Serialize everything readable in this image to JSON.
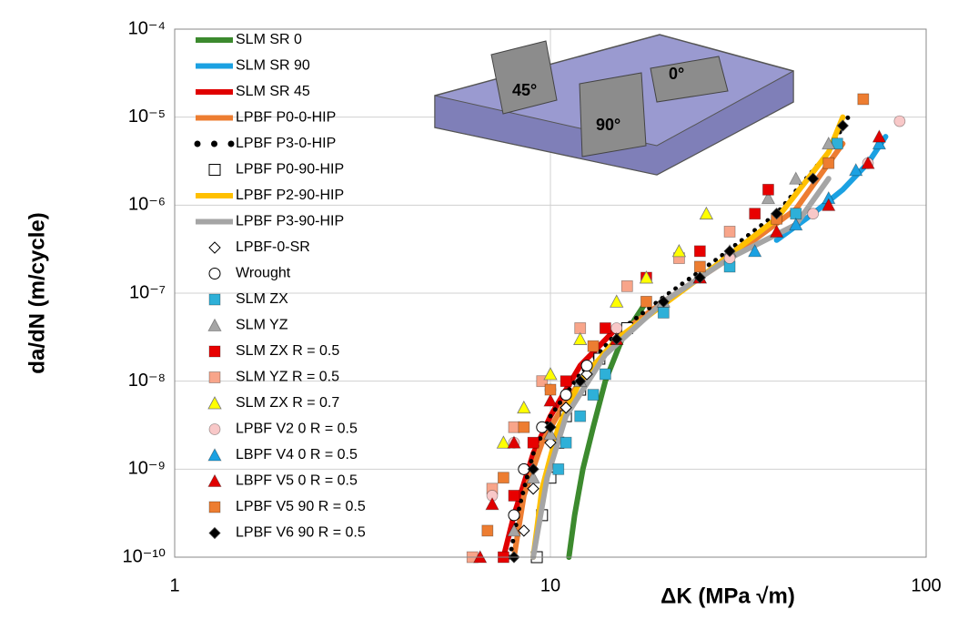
{
  "chart_data": {
    "type": "scatter",
    "x_label": "ΔK (MPa √m)",
    "y_label": "da/dN (m/cycle)",
    "xscale": "log",
    "yscale": "log",
    "xlim": [
      1,
      100
    ],
    "ylim": [
      1e-10,
      0.0001
    ],
    "xticks": [
      1,
      10,
      100
    ],
    "yticks": [
      {
        "value": 1e-10,
        "label": "10⁻¹⁰"
      },
      {
        "value": 1e-09,
        "label": "10⁻⁹"
      },
      {
        "value": 1e-08,
        "label": "10⁻⁸"
      },
      {
        "value": 1e-07,
        "label": "10⁻⁷"
      },
      {
        "value": 1e-06,
        "label": "10⁻⁶"
      },
      {
        "value": 1e-05,
        "label": "10⁻⁵"
      },
      {
        "value": 0.0001,
        "label": "10⁻⁴"
      }
    ],
    "grid": true,
    "legend": "top-left",
    "inset_labels": [
      "45°",
      "90°",
      "0°"
    ],
    "series": [
      {
        "name": "SLM SR 0",
        "color": "#3c8a2e",
        "marker": "line",
        "x": [
          11.2,
          11.6,
          12.2,
          13,
          14,
          15.5,
          18
        ],
        "values": [
          1e-10,
          3e-10,
          1e-09,
          3e-09,
          1e-08,
          3e-08,
          8e-08
        ]
      },
      {
        "name": "SLM SR 90",
        "color": "#1ba1e2",
        "marker": "line",
        "x": [
          40,
          50,
          60,
          70,
          78
        ],
        "values": [
          4e-07,
          8e-07,
          1.5e-06,
          3e-06,
          6e-06
        ]
      },
      {
        "name": "SLM SR 45",
        "color": "#e00000",
        "marker": "line",
        "x": [
          7.5,
          8,
          9,
          10,
          12,
          15
        ],
        "values": [
          1e-10,
          3e-10,
          1.5e-09,
          4e-09,
          1.5e-08,
          4e-08
        ]
      },
      {
        "name": "LPBF P0-0-HIP",
        "color": "#ed7d31",
        "marker": "line",
        "x": [
          8,
          8.5,
          9.5,
          11,
          13,
          16,
          20,
          30,
          45,
          60
        ],
        "values": [
          1e-10,
          5e-10,
          2e-09,
          6e-09,
          1.5e-08,
          4e-08,
          8e-08,
          2.5e-07,
          9e-07,
          5e-06
        ]
      },
      {
        "name": "LPBF P3-0-HIP",
        "color": "#000000",
        "marker": "dots",
        "x": [
          7.8,
          8.3,
          9,
          10,
          12,
          15,
          20,
          28,
          40,
          55,
          62
        ],
        "values": [
          1e-10,
          4e-10,
          1.5e-09,
          4e-09,
          1.2e-08,
          3.5e-08,
          9e-08,
          2.5e-07,
          8e-07,
          4e-06,
          1e-05
        ]
      },
      {
        "name": "LPBF P0-90-HIP",
        "color": "#000000",
        "marker": "open-square",
        "x": [
          9.2,
          9.5,
          10,
          10.5,
          11,
          12,
          13.5,
          16
        ],
        "values": [
          1e-10,
          3e-10,
          8e-10,
          2e-09,
          4e-09,
          8e-09,
          1.8e-08,
          4e-08
        ]
      },
      {
        "name": "LPBF P2-90-HIP",
        "color": "#ffc000",
        "marker": "line",
        "x": [
          9,
          9.5,
          10.5,
          12,
          15,
          25,
          40,
          55,
          60
        ],
        "values": [
          1e-10,
          6e-10,
          3e-09,
          1e-08,
          3e-08,
          1.5e-07,
          7e-07,
          4e-06,
          1e-05
        ]
      },
      {
        "name": "LPBF P3-90-HIP",
        "color": "#a5a5a5",
        "marker": "line",
        "x": [
          9,
          9.8,
          11,
          14,
          20,
          30,
          45,
          55
        ],
        "values": [
          1e-10,
          8e-10,
          4e-09,
          2e-08,
          8e-08,
          2.5e-07,
          6e-07,
          2e-06
        ]
      },
      {
        "name": "LPBF-0-SR",
        "color": "#000000",
        "marker": "open-diamond",
        "x": [
          8.5,
          9,
          10,
          11,
          12.5
        ],
        "values": [
          2e-10,
          6e-10,
          2e-09,
          5e-09,
          1.2e-08
        ]
      },
      {
        "name": "Wrought",
        "color": "#000000",
        "marker": "open-circle",
        "x": [
          8,
          8.5,
          9.5,
          11,
          12.5
        ],
        "values": [
          3e-10,
          1e-09,
          3e-09,
          7e-09,
          1.5e-08
        ]
      },
      {
        "name": "SLM ZX",
        "color": "#2eb0d8",
        "marker": "square",
        "x": [
          10.5,
          11,
          12,
          13,
          14,
          20,
          30,
          45,
          58
        ],
        "values": [
          1e-09,
          2e-09,
          4e-09,
          7e-09,
          1.2e-08,
          6e-08,
          2e-07,
          8e-07,
          5e-06
        ]
      },
      {
        "name": "SLM YZ",
        "color": "#a5a5a5",
        "marker": "triangle",
        "x": [
          8,
          9,
          10,
          12,
          15,
          20,
          30,
          38,
          45,
          55
        ],
        "values": [
          2e-10,
          8e-10,
          2.5e-09,
          1e-08,
          3e-08,
          8e-08,
          3e-07,
          1.2e-06,
          2e-06,
          5e-06
        ]
      },
      {
        "name": "SLM ZX R = 0.5",
        "color": "#e80000",
        "marker": "square",
        "x": [
          7.5,
          8,
          9,
          11,
          14,
          18,
          25,
          35,
          38
        ],
        "values": [
          1e-10,
          5e-10,
          2e-09,
          1e-08,
          4e-08,
          1.5e-07,
          3e-07,
          8e-07,
          1.5e-06
        ]
      },
      {
        "name": "SLM YZ R = 0.5",
        "color": "#f8a58a",
        "marker": "square",
        "x": [
          6.2,
          7,
          8,
          9.5,
          12,
          16,
          22,
          30
        ],
        "values": [
          1e-10,
          6e-10,
          3e-09,
          1e-08,
          4e-08,
          1.2e-07,
          2.5e-07,
          5e-07
        ]
      },
      {
        "name": "SLM ZX R = 0.7",
        "color": "#ffff00",
        "marker": "triangle",
        "x": [
          7.5,
          8.5,
          10,
          12,
          15,
          18,
          22,
          26
        ],
        "values": [
          2e-09,
          5e-09,
          1.2e-08,
          3e-08,
          8e-08,
          1.5e-07,
          3e-07,
          8e-07
        ]
      },
      {
        "name": "LPBF V2 0 R = 0.5",
        "color": "#f8c8c8",
        "marker": "circle",
        "x": [
          7,
          8,
          10,
          15,
          30,
          50,
          70,
          85
        ],
        "values": [
          5e-10,
          2e-09,
          8e-09,
          4e-08,
          2.5e-07,
          8e-07,
          3e-06,
          9e-06
        ]
      },
      {
        "name": "LBPF V4 0 R = 0.5",
        "color": "#1ba1e2",
        "marker": "triangle",
        "x": [
          25,
          35,
          45,
          55,
          65,
          75
        ],
        "values": [
          1.5e-07,
          3e-07,
          6e-07,
          1.2e-06,
          2.5e-06,
          5e-06
        ]
      },
      {
        "name": "LBPF V5 0 R = 0.5",
        "color": "#e00000",
        "marker": "triangle",
        "x": [
          6.5,
          7,
          8,
          10,
          15,
          25,
          40,
          55,
          70,
          75
        ],
        "values": [
          1e-10,
          4e-10,
          2e-09,
          6e-09,
          3e-08,
          1.5e-07,
          5e-07,
          1e-06,
          3e-06,
          6e-06
        ]
      },
      {
        "name": "LPBF V5 90  R = 0.5",
        "color": "#ed7d31",
        "marker": "square",
        "x": [
          6.8,
          7.5,
          8.5,
          10,
          13,
          18,
          25,
          40,
          55,
          68
        ],
        "values": [
          2e-10,
          8e-10,
          3e-09,
          8e-09,
          2.5e-08,
          8e-08,
          2e-07,
          7e-07,
          3e-06,
          1.6e-05
        ]
      },
      {
        "name": "LPBF V6 90 R = 0.5",
        "color": "#000000",
        "marker": "diamond",
        "x": [
          8,
          9,
          10,
          12,
          15,
          20,
          25,
          30,
          40,
          50,
          60
        ],
        "values": [
          1e-10,
          1e-09,
          3e-09,
          1e-08,
          3e-08,
          8e-08,
          1.5e-07,
          3e-07,
          8e-07,
          2e-06,
          8e-06
        ]
      }
    ]
  }
}
